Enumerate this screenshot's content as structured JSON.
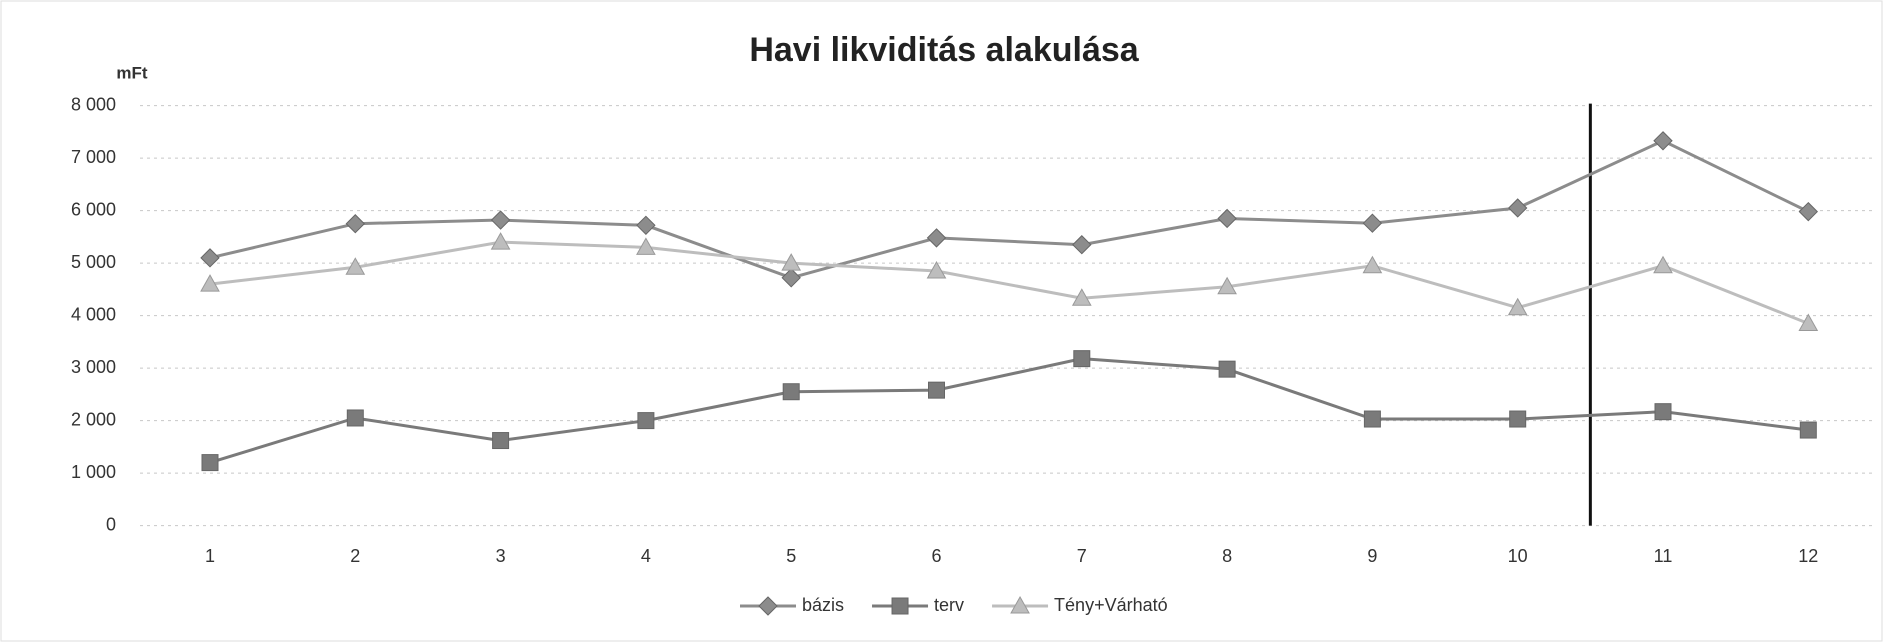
{
  "chart_data": {
    "type": "line",
    "title": "Havi likviditás alakulása",
    "y_label": "mFt",
    "categories": [
      1,
      2,
      3,
      4,
      5,
      6,
      7,
      8,
      9,
      10,
      11,
      12
    ],
    "series": [
      {
        "name": "bázis",
        "color": "#8c8c8c",
        "marker": "diamond",
        "values": [
          5100,
          5750,
          5820,
          5720,
          4720,
          5480,
          5350,
          5850,
          5760,
          6050,
          7330,
          5980
        ]
      },
      {
        "name": "terv",
        "color": "#7a7a7a",
        "marker": "square",
        "values": [
          1200,
          2050,
          1620,
          2000,
          2550,
          2580,
          3180,
          2980,
          2030,
          2030,
          2170,
          1820
        ]
      },
      {
        "name": "Tény+Várható",
        "color": "#bdbdbd",
        "marker": "triangle",
        "values": [
          4600,
          4920,
          5400,
          5300,
          5000,
          4850,
          4330,
          4550,
          4950,
          4150,
          4950,
          3850
        ]
      }
    ],
    "ylim": [
      0,
      8000
    ],
    "yticks": [
      0,
      {
        "value": 1000,
        "label": "1 000"
      },
      {
        "value": 2000,
        "label": "2 000"
      },
      {
        "value": 3000,
        "label": "3 000"
      },
      {
        "value": 4000,
        "label": "4 000"
      },
      {
        "value": 5000,
        "label": "5 000"
      },
      {
        "value": 6000,
        "label": "6 000"
      },
      {
        "value": 7000,
        "label": "7 000"
      },
      {
        "value": 8000,
        "label": "8 000"
      }
    ],
    "grid": true,
    "legend": "bottom"
  }
}
